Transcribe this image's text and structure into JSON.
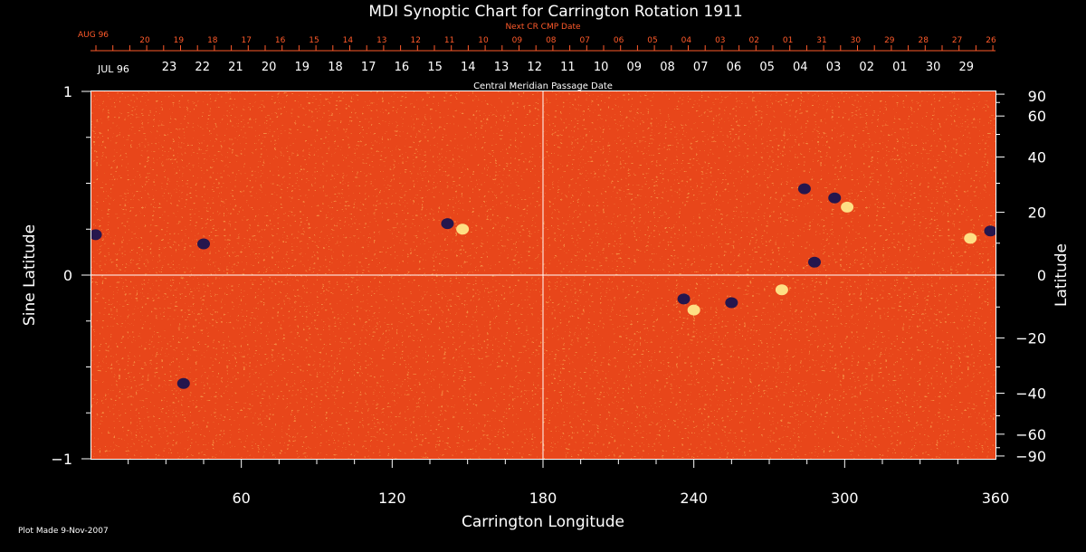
{
  "chart_data": {
    "type": "heatmap",
    "title": "MDI Synoptic Chart for Carrington Rotation 1911",
    "xlabel": "Carrington Longitude",
    "ylabel_left": "Sine Latitude",
    "ylabel_right": "Latitude",
    "xlim": [
      0,
      360
    ],
    "ylim": [
      -1,
      1
    ],
    "x_ticks": [
      60,
      120,
      180,
      240,
      300,
      360
    ],
    "y_left_ticks": [
      {
        "value": 1,
        "label": "1"
      },
      {
        "value": 0,
        "label": "0"
      },
      {
        "value": -1,
        "label": "−1"
      }
    ],
    "y_right_ticks": [
      {
        "deg": 90,
        "label": "90"
      },
      {
        "deg": 60,
        "label": "60"
      },
      {
        "deg": 40,
        "label": "40"
      },
      {
        "deg": 20,
        "label": "20"
      },
      {
        "deg": 0,
        "label": "0"
      },
      {
        "deg": -20,
        "label": "−20"
      },
      {
        "deg": -40,
        "label": "−40"
      },
      {
        "deg": -60,
        "label": "−60"
      },
      {
        "deg": -90,
        "label": "−90"
      }
    ],
    "next_cr_axis": {
      "title": "Next CR CMP Date",
      "month_label": "AUG 96",
      "labels": [
        "20",
        "19",
        "18",
        "17",
        "16",
        "15",
        "14",
        "13",
        "12",
        "11",
        "10",
        "09",
        "08",
        "07",
        "06",
        "05",
        "04",
        "03",
        "02",
        "01",
        "31",
        "30",
        "29",
        "28",
        "27",
        "26"
      ]
    },
    "cmp_axis": {
      "title": "Central Meridian Passage Date",
      "month_label": "JUL 96",
      "labels": [
        "23",
        "22",
        "21",
        "20",
        "19",
        "18",
        "17",
        "16",
        "15",
        "14",
        "13",
        "12",
        "11",
        "10",
        "09",
        "08",
        "07",
        "06",
        "05",
        "04",
        "03",
        "02",
        "01",
        "30",
        "29"
      ]
    },
    "colors": {
      "background_field": "#e8461a",
      "positive_polarity": "#ffe88a",
      "negative_polarity": "#1a1450",
      "next_cr_text": "#ff5a2a",
      "text": "#ffffff"
    },
    "active_regions": [
      {
        "lon": 296,
        "sinlat": 0.42,
        "polarity": "negative"
      },
      {
        "lon": 301,
        "sinlat": 0.37,
        "polarity": "positive"
      },
      {
        "lon": 284,
        "sinlat": 0.47,
        "polarity": "negative"
      },
      {
        "lon": 358,
        "sinlat": 0.24,
        "polarity": "negative"
      },
      {
        "lon": 350,
        "sinlat": 0.2,
        "polarity": "positive"
      },
      {
        "lon": 236,
        "sinlat": -0.13,
        "polarity": "negative"
      },
      {
        "lon": 240,
        "sinlat": -0.19,
        "polarity": "positive"
      },
      {
        "lon": 255,
        "sinlat": -0.15,
        "polarity": "negative"
      },
      {
        "lon": 275,
        "sinlat": -0.08,
        "polarity": "positive"
      },
      {
        "lon": 288,
        "sinlat": 0.07,
        "polarity": "negative"
      },
      {
        "lon": 148,
        "sinlat": 0.25,
        "polarity": "positive"
      },
      {
        "lon": 142,
        "sinlat": 0.28,
        "polarity": "negative"
      },
      {
        "lon": 2,
        "sinlat": 0.22,
        "polarity": "negative"
      },
      {
        "lon": 45,
        "sinlat": 0.17,
        "polarity": "negative"
      },
      {
        "lon": 37,
        "sinlat": -0.59,
        "polarity": "negative"
      }
    ]
  },
  "footer": {
    "plot_made": "Plot Made  9-Nov-2007"
  }
}
